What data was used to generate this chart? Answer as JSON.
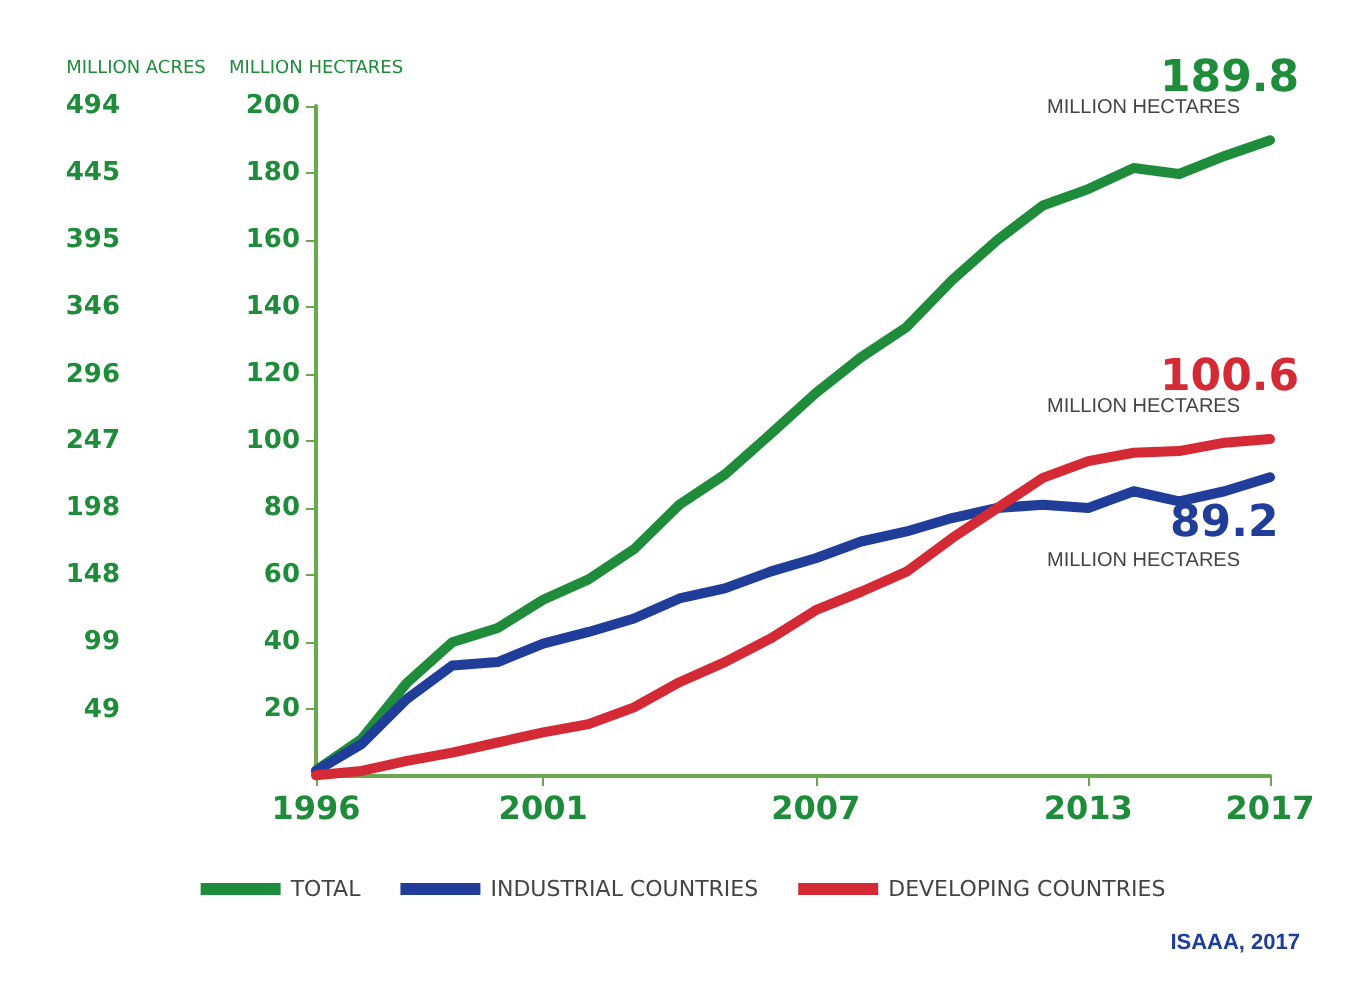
{
  "chart_data": {
    "type": "line",
    "ylabel": "MILLION HECTARES",
    "y2label": "MILLION ACRES",
    "x": [
      1996,
      1997,
      1998,
      1999,
      2000,
      2001,
      2002,
      2003,
      2004,
      2005,
      2006,
      2007,
      2008,
      2009,
      2010,
      2011,
      2012,
      2013,
      2014,
      2015,
      2016,
      2017
    ],
    "series": [
      {
        "name": "TOTAL",
        "color": "#1e8c3a",
        "values": [
          1.7,
          11,
          27.8,
          39.9,
          44.2,
          52.6,
          58.7,
          67.7,
          81,
          90,
          102,
          114.3,
          125,
          134,
          148,
          160,
          170.3,
          175.2,
          181.5,
          179.7,
          185.1,
          189.8
        ],
        "value_labels": [
          null,
          null,
          null,
          null,
          null,
          null,
          null,
          null,
          null,
          null,
          null,
          null,
          null,
          null,
          null,
          null,
          null,
          null,
          null,
          null,
          null,
          "189.8"
        ]
      },
      {
        "name": "INDUSTRIAL COUNTRIES",
        "color": "#1f3d99",
        "values": [
          1.5,
          9.5,
          23,
          33,
          34,
          39.5,
          43,
          47,
          53,
          56,
          61,
          65,
          70,
          73,
          77,
          80,
          81,
          80,
          85,
          82,
          85,
          89.2
        ],
        "value_labels": [
          null,
          null,
          null,
          null,
          null,
          null,
          null,
          null,
          null,
          null,
          null,
          null,
          null,
          null,
          null,
          null,
          null,
          null,
          null,
          null,
          null,
          "89.2"
        ]
      },
      {
        "name": "DEVELOPING COUNTRIES",
        "color": "#d42a35",
        "values": [
          0.2,
          1.5,
          4.5,
          7,
          10,
          13,
          15.5,
          20.5,
          28,
          34,
          41,
          49.5,
          55,
          61,
          71,
          80,
          89,
          94,
          96.5,
          97,
          99.5,
          100.6
        ],
        "value_labels": [
          null,
          null,
          null,
          null,
          null,
          null,
          null,
          null,
          null,
          null,
          null,
          null,
          null,
          null,
          null,
          null,
          null,
          null,
          null,
          null,
          null,
          "100.6"
        ]
      }
    ],
    "xlim": [
      1996,
      2017
    ],
    "xticks": [
      1996,
      2001,
      2007,
      2013,
      2017
    ],
    "ylim": [
      0,
      200
    ],
    "yticks": [
      20,
      40,
      60,
      80,
      100,
      120,
      140,
      160,
      180,
      200
    ],
    "y2lim": [
      0,
      494.2
    ],
    "y2ticks": [
      49,
      99,
      148,
      198,
      247,
      296,
      346,
      395,
      445,
      494
    ],
    "grid": false,
    "legend": "bottom",
    "marker": "none",
    "line_style": "solid",
    "annotations": [
      "MILLION HECTARES",
      "MILLION HECTARES",
      "MILLION HECTARES",
      "ISAAA, 2017"
    ]
  }
}
